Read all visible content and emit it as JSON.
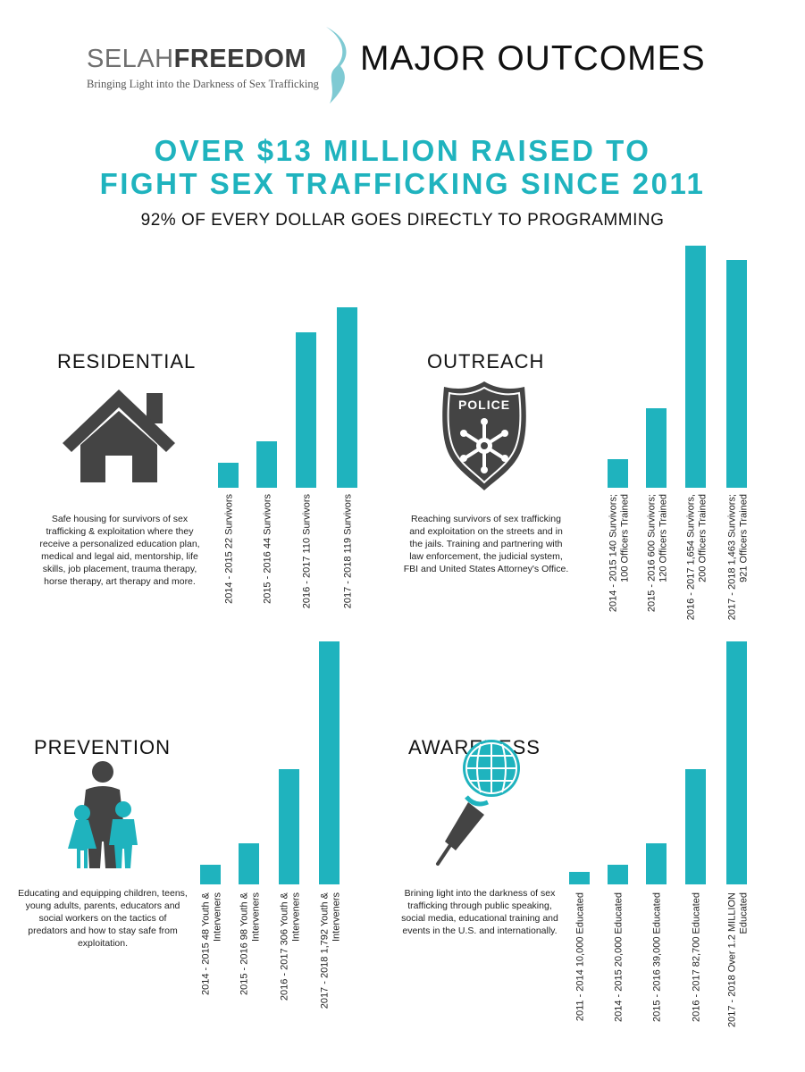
{
  "header": {
    "logo_part1": "SELAH",
    "logo_part2": "FREEDOM",
    "logo_tagline": "Bringing Light into the Darkness of Sex Trafficking",
    "title": "MAJOR OUTCOMES"
  },
  "headline": {
    "line1": "OVER $13 MILLION RAISED TO",
    "line2": "FIGHT SEX TRAFFICKING SINCE 2011",
    "subhead": "92% OF EVERY DOLLAR GOES DIRECTLY TO PROGRAMMING"
  },
  "colors": {
    "accent": "#1fb3be",
    "icon": "#444444"
  },
  "sections": {
    "residential": {
      "title": "RESIDENTIAL",
      "icon": "house-icon",
      "description": "Safe housing for survivors of sex trafficking & exploitation where they receive a personalized education plan, medical and legal aid, mentorship, life skills, job placement, trauma therapy, horse therapy, art therapy and more."
    },
    "outreach": {
      "title": "OUTREACH",
      "icon": "police-badge-icon",
      "badge_text": "POLICE",
      "description": "Reaching survivors of sex trafficking and exploitation on the streets and in the jails. Training and partnering with law enforcement, the judicial system, FBI and United States Attorney's Office."
    },
    "prevention": {
      "title": "PREVENTION",
      "icon": "family-icon",
      "description": "Educating and equipping children, teens, young adults, parents, educators and social workers on the tactics of predators and how to stay safe from exploitation."
    },
    "awareness": {
      "title": "AWARENESS",
      "icon": "microphone-icon",
      "description": "Brining light into the darkness of sex trafficking through public speaking, social media, educational training and events in the U.S. and internationally."
    }
  },
  "chart_data": [
    {
      "type": "bar",
      "categories": [
        [
          "2014 - 2015  22 Survivors"
        ],
        [
          "2015 - 2016  44 Survivors"
        ],
        [
          "2016 - 2017  110 Survivors"
        ],
        [
          "2017 - 2018  119 Survivors"
        ]
      ],
      "values": [
        22,
        44,
        110,
        119
      ]
    },
    {
      "type": "bar",
      "categories": [
        [
          "2014 - 2015  140 Survivors;",
          "100 Officers Trained"
        ],
        [
          "2015 - 2016  600 Survivors;",
          "120 Officers Trained"
        ],
        [
          "2016 - 2017  1,654 Survivors,",
          "200 Officers Trained"
        ],
        [
          "2017 - 2018  1,463 Survivors;",
          "921 Officers Trained"
        ]
      ],
      "values": [
        140,
        600,
        1654,
        1463
      ]
    },
    {
      "type": "bar",
      "categories": [
        [
          "2014 - 2015  48 Youth &",
          "Interveners"
        ],
        [
          "2015 - 2016  98 Youth &",
          "Interveners"
        ],
        [
          "2016 - 2017  306 Youth &",
          "Interveners"
        ],
        [
          "2017 - 2018  1,792 Youth &",
          "Interveners"
        ]
      ],
      "values": [
        48,
        98,
        306,
        1792
      ]
    },
    {
      "type": "bar",
      "categories": [
        [
          "2011 - 2014  10,000 Educated"
        ],
        [
          "2014 - 2015  20,000 Educated"
        ],
        [
          "2015 - 2016   39,000 Educated"
        ],
        [
          "2016 - 2017  82,700 Educated"
        ],
        [
          "2017 - 2018  Over 1.2 MILLION",
          "Educated"
        ]
      ],
      "values": [
        10000,
        20000,
        39000,
        82700,
        1200000
      ]
    }
  ]
}
